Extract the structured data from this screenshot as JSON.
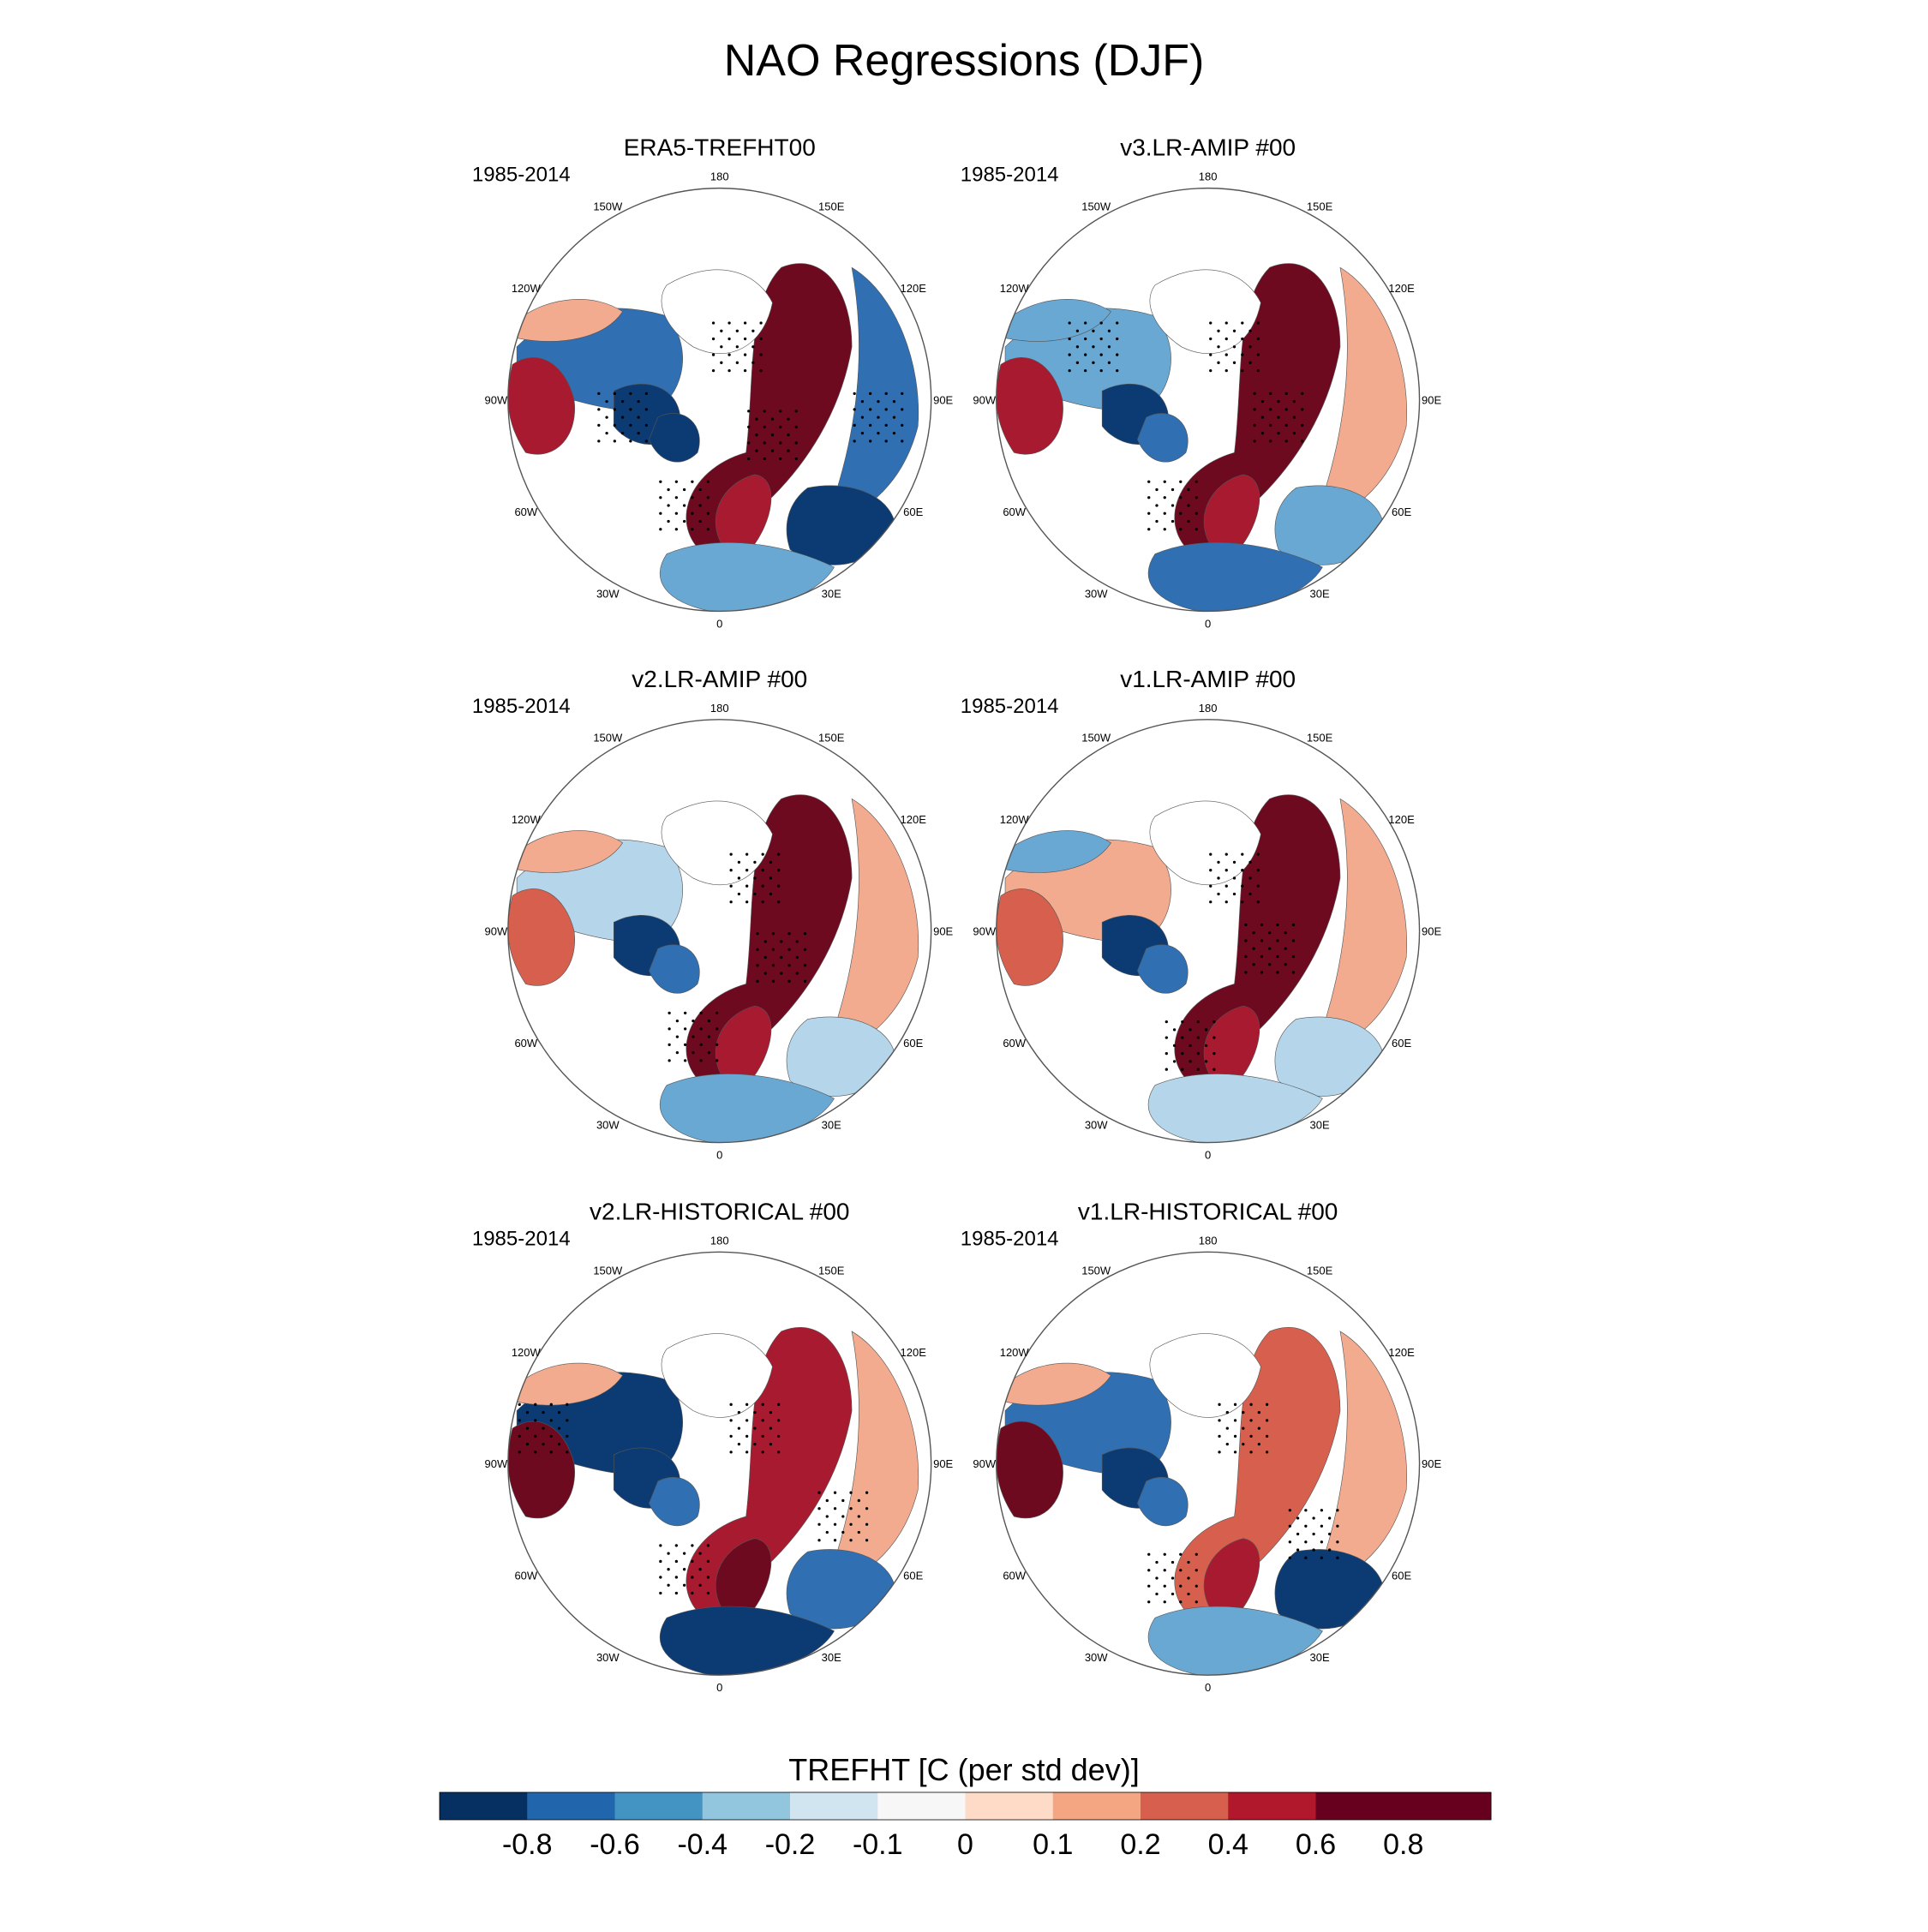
{
  "title": "NAO Regressions (DJF)",
  "panels": [
    {
      "title": "ERA5-TREFHT00",
      "period": "1985-2014"
    },
    {
      "title": "v3.LR-AMIP  #00",
      "period": "1985-2014"
    },
    {
      "title": "v2.LR-AMIP  #00",
      "period": "1985-2014"
    },
    {
      "title": "v1.LR-AMIP  #00",
      "period": "1985-2014"
    },
    {
      "title": "v2.LR-HISTORICAL  #00",
      "period": "1985-2014"
    },
    {
      "title": "v1.LR-HISTORICAL  #00",
      "period": "1985-2014"
    }
  ],
  "longitude_labels": [
    {
      "text": "180",
      "angle": 180
    },
    {
      "text": "150E",
      "angle": 150
    },
    {
      "text": "120E",
      "angle": 120
    },
    {
      "text": "90E",
      "angle": 90
    },
    {
      "text": "60E",
      "angle": 60
    },
    {
      "text": "30E",
      "angle": 30
    },
    {
      "text": "0",
      "angle": 0
    },
    {
      "text": "30W",
      "angle": -30
    },
    {
      "text": "60W",
      "angle": -60
    },
    {
      "text": "90W",
      "angle": -90
    },
    {
      "text": "120W",
      "angle": -120
    },
    {
      "text": "150W",
      "angle": -150
    }
  ],
  "colorbar": {
    "title": "TREFHT [C (per std dev)]",
    "colors": [
      "#053061",
      "#2166ac",
      "#4393c3",
      "#92c5de",
      "#d1e5f0",
      "#f7f7f7",
      "#fddbc7",
      "#f4a582",
      "#d6604d",
      "#b2182b",
      "#67001f",
      "#67001f"
    ],
    "tick_labels": [
      "-0.8",
      "-0.6",
      "-0.4",
      "-0.2",
      "-0.1",
      "0",
      "0.1",
      "0.2",
      "0.4",
      "0.6",
      "0.8"
    ]
  },
  "palette": {
    "dark_blue": "#0b3b72",
    "blue": "#2f6fb2",
    "mid_blue": "#6aa8d4",
    "light_blue": "#b4d5ea",
    "pale_blue": "#dbe9f3",
    "pale_red": "#f9ddd0",
    "light_red": "#f2ab8e",
    "red": "#d6604d",
    "dark_red": "#a81a2f",
    "maroon": "#6e0a1f"
  }
}
